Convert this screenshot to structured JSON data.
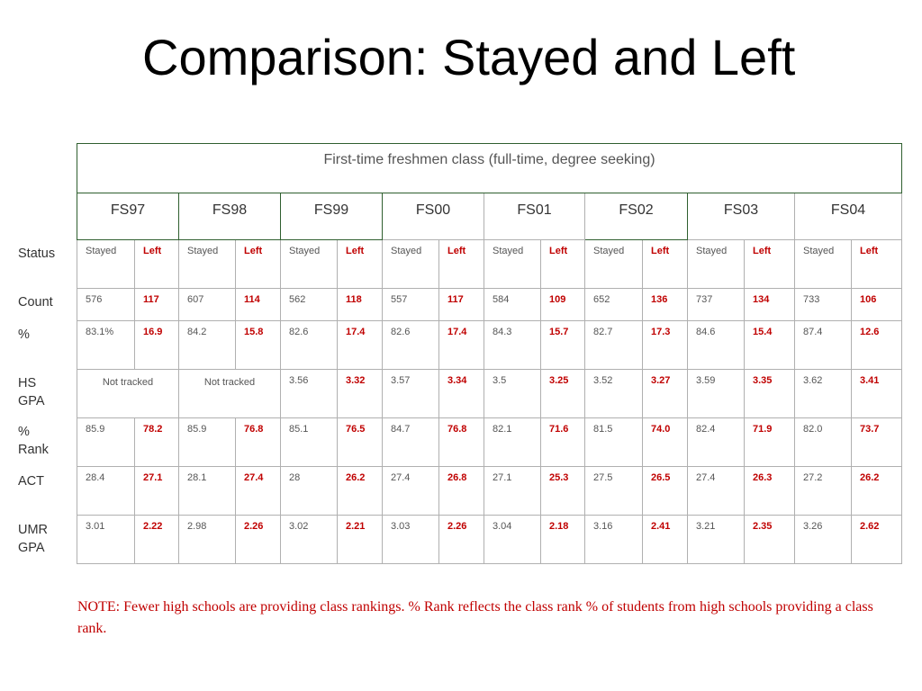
{
  "title": "Comparison: Stayed and Left",
  "banner": "First-time freshmen class (full-time, degree seeking)",
  "years": [
    "FS97",
    "FS98",
    "FS99",
    "FS00",
    "FS01",
    "FS02",
    "FS03",
    "FS04"
  ],
  "row_labels": {
    "status": "Status",
    "count": "Count",
    "pct": "%",
    "hs_gpa": "HS\nGPA",
    "pct_rank": "%\nRank",
    "act": "ACT",
    "umr_gpa": "UMR\nGPA"
  },
  "status": {
    "stayed": "Stayed",
    "left": "Left"
  },
  "not_tracked": "Not tracked",
  "rows": {
    "count": {
      "stayed": [
        "576",
        "607",
        "562",
        "557",
        "584",
        "652",
        "737",
        "733"
      ],
      "left": [
        "117",
        "114",
        "118",
        "117",
        "109",
        "136",
        "134",
        "106"
      ]
    },
    "pct": {
      "stayed": [
        "83.1%",
        "84.2",
        "82.6",
        "82.6",
        "84.3",
        "82.7",
        "84.6",
        "87.4"
      ],
      "left": [
        "16.9",
        "15.8",
        "17.4",
        "17.4",
        "15.7",
        "17.3",
        "15.4",
        "12.6"
      ]
    },
    "hs_gpa": {
      "stayed": [
        "",
        "",
        "3.56",
        "3.57",
        "3.5",
        "3.52",
        "3.59",
        "3.62"
      ],
      "left": [
        "",
        "",
        "3.32",
        "3.34",
        "3.25",
        "3.27",
        "3.35",
        "3.41"
      ]
    },
    "pct_rank": {
      "stayed": [
        "85.9",
        "85.9",
        "85.1",
        "84.7",
        "82.1",
        "81.5",
        "82.4",
        "82.0"
      ],
      "left": [
        "78.2",
        "76.8",
        "76.5",
        "76.8",
        "71.6",
        "74.0",
        "71.9",
        "73.7"
      ]
    },
    "act": {
      "stayed": [
        "28.4",
        "28.1",
        "28",
        "27.4",
        "27.1",
        "27.5",
        "27.4",
        "27.2"
      ],
      "left": [
        "27.1",
        "27.4",
        "26.2",
        "26.8",
        "25.3",
        "26.5",
        "26.3",
        "26.2"
      ]
    },
    "umr_gpa": {
      "stayed": [
        "3.01",
        "2.98",
        "3.02",
        "3.03",
        "3.04",
        "3.16",
        "3.21",
        "3.26"
      ],
      "left": [
        "2.22",
        "2.26",
        "2.21",
        "2.26",
        "2.18",
        "2.41",
        "2.35",
        "2.62"
      ]
    }
  },
  "note": "NOTE: Fewer high schools are providing class rankings.  % Rank reflects the class rank % of students from high schools providing a class rank.",
  "colors": {
    "left_values": "#c00000",
    "note": "#c00000",
    "table_border_dark": "#2f5f2f",
    "table_border_light": "#b0b0b0"
  }
}
